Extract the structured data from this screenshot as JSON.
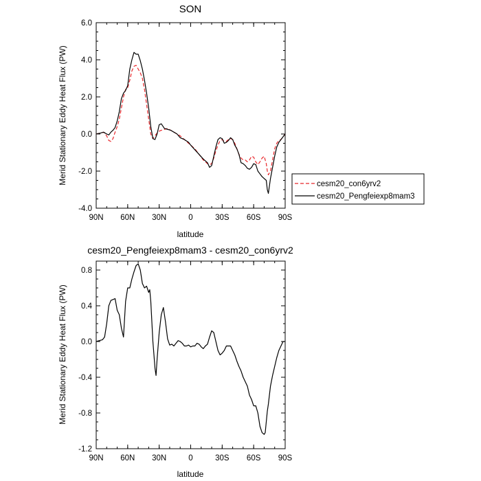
{
  "chart_data": [
    {
      "type": "line",
      "title": "SON",
      "xlabel": "latitude",
      "ylabel": "Merid Stationary Eddy Heat Flux (PW)",
      "xlim": [
        90,
        -90
      ],
      "ylim": [
        -4,
        6
      ],
      "x_ticks": [
        90,
        60,
        30,
        0,
        -30,
        -60,
        -90
      ],
      "x_tick_labels": [
        "90N",
        "60N",
        "30N",
        "0",
        "30S",
        "60S",
        "90S"
      ],
      "y_ticks": [
        -4,
        -2,
        0,
        2,
        4,
        6
      ],
      "y_tick_labels": [
        "-4.0",
        "-2.0",
        "0.0",
        "2.0",
        "4.0",
        "6.0"
      ],
      "grid": false,
      "legend_position": "right",
      "series": [
        {
          "name": "cesm20_con6yrv2",
          "color": "#e8262a",
          "dash": "dashed",
          "x": [
            90,
            86,
            83,
            80,
            78,
            76,
            74,
            72,
            70,
            68,
            66,
            64,
            62,
            60,
            58,
            56,
            54,
            52,
            50,
            48,
            46,
            44,
            42,
            40,
            38,
            36,
            34,
            32,
            30,
            28,
            25,
            22,
            19,
            16,
            13,
            10,
            6,
            2,
            0,
            -4,
            -8,
            -12,
            -16,
            -18,
            -20,
            -22,
            -24,
            -26,
            -28,
            -30,
            -32,
            -34,
            -36,
            -38,
            -40,
            -42,
            -44,
            -46,
            -48,
            -50,
            -52,
            -54,
            -56,
            -58,
            -60,
            -62,
            -64,
            -66,
            -68,
            -70,
            -72,
            -73,
            -74,
            -76,
            -78,
            -80,
            -82,
            -84,
            -86,
            -90
          ],
          "y": [
            0.0,
            0.05,
            0.1,
            -0.1,
            -0.35,
            -0.4,
            -0.25,
            0.1,
            0.4,
            0.8,
            1.4,
            2.0,
            2.4,
            2.5,
            2.9,
            3.4,
            3.65,
            3.7,
            3.5,
            3.3,
            3.0,
            2.4,
            1.6,
            0.8,
            0.0,
            -0.25,
            -0.1,
            0.05,
            0.15,
            0.2,
            0.25,
            0.3,
            0.2,
            0.1,
            0.0,
            -0.1,
            -0.3,
            -0.5,
            -0.6,
            -0.8,
            -1.1,
            -1.4,
            -1.6,
            -1.65,
            -1.6,
            -1.3,
            -0.9,
            -0.6,
            -0.35,
            -0.3,
            -0.4,
            -0.4,
            -0.3,
            -0.25,
            -0.3,
            -0.5,
            -0.8,
            -1.1,
            -1.3,
            -1.4,
            -1.4,
            -1.5,
            -1.4,
            -1.2,
            -1.25,
            -1.5,
            -1.65,
            -1.5,
            -1.3,
            -1.2,
            -1.6,
            -2.0,
            -2.2,
            -2.0,
            -1.4,
            -0.8,
            -0.5,
            -0.35,
            -0.3,
            0.0
          ]
        },
        {
          "name": "cesm20_Pengfeiexp8mam3",
          "color": "#000000",
          "dash": "solid",
          "x": [
            90,
            86,
            83,
            80,
            78,
            76,
            74,
            72,
            70,
            68,
            66,
            64,
            62,
            60,
            58,
            56,
            54,
            52,
            50,
            48,
            46,
            44,
            42,
            40,
            38,
            36,
            34,
            32,
            30,
            28,
            25,
            22,
            19,
            16,
            13,
            10,
            6,
            2,
            0,
            -4,
            -8,
            -12,
            -16,
            -18,
            -20,
            -22,
            -24,
            -26,
            -28,
            -30,
            -32,
            -34,
            -36,
            -38,
            -40,
            -42,
            -44,
            -46,
            -48,
            -50,
            -52,
            -54,
            -56,
            -58,
            -60,
            -62,
            -64,
            -66,
            -68,
            -70,
            -72,
            -73,
            -74,
            -76,
            -78,
            -80,
            -82,
            -84,
            -86,
            -90
          ],
          "y": [
            0.0,
            0.05,
            0.1,
            0.0,
            -0.05,
            0.1,
            0.2,
            0.35,
            0.7,
            1.2,
            1.9,
            2.2,
            2.35,
            2.6,
            3.5,
            4.0,
            4.4,
            4.3,
            4.3,
            3.95,
            3.5,
            2.9,
            2.2,
            1.4,
            0.4,
            -0.25,
            -0.3,
            0.0,
            0.5,
            0.55,
            0.3,
            0.25,
            0.2,
            0.1,
            0.0,
            -0.2,
            -0.3,
            -0.45,
            -0.6,
            -0.85,
            -1.1,
            -1.35,
            -1.55,
            -1.8,
            -1.7,
            -1.2,
            -0.7,
            -0.3,
            -0.2,
            -0.25,
            -0.5,
            -0.45,
            -0.35,
            -0.2,
            -0.3,
            -0.6,
            -0.8,
            -1.1,
            -1.55,
            -1.6,
            -1.7,
            -1.85,
            -1.9,
            -1.8,
            -1.6,
            -1.65,
            -2.0,
            -2.15,
            -2.3,
            -2.4,
            -2.5,
            -3.0,
            -3.2,
            -2.4,
            -1.8,
            -1.2,
            -0.7,
            -0.45,
            -0.3,
            0.0
          ]
        }
      ]
    },
    {
      "type": "line",
      "title": "cesm20_Pengfeiexp8mam3 - cesm20_con6yrv2",
      "xlabel": "latitude",
      "ylabel": "Merid Stationary Eddy Heat Flux (PW)",
      "xlim": [
        90,
        -90
      ],
      "ylim": [
        -1.2,
        0.9
      ],
      "x_ticks": [
        90,
        60,
        30,
        0,
        -30,
        -60,
        -90
      ],
      "x_tick_labels": [
        "90N",
        "60N",
        "30N",
        "0",
        "30S",
        "60S",
        "90S"
      ],
      "y_ticks": [
        -1.2,
        -0.8,
        -0.4,
        0.0,
        0.4,
        0.8
      ],
      "y_tick_labels": [
        "-1.2",
        "-0.8",
        "-0.4",
        "0.0",
        "0.4",
        "0.8"
      ],
      "grid": false,
      "series": [
        {
          "color": "#000000",
          "dash": "solid",
          "x": [
            90,
            87,
            84,
            82,
            80,
            78,
            76,
            74,
            72,
            70,
            68,
            66,
            64,
            62,
            60,
            58,
            56,
            54,
            52,
            50,
            48,
            46,
            44,
            42,
            40,
            39,
            38,
            36,
            34,
            33,
            32,
            30,
            28,
            26,
            24,
            22,
            20,
            18,
            16,
            14,
            12,
            10,
            8,
            6,
            4,
            2,
            0,
            -2,
            -4,
            -6,
            -8,
            -10,
            -12,
            -14,
            -16,
            -18,
            -20,
            -22,
            -24,
            -26,
            -28,
            -30,
            -32,
            -34,
            -36,
            -38,
            -40,
            -42,
            -44,
            -46,
            -48,
            -50,
            -52,
            -54,
            -56,
            -58,
            -60,
            -62,
            -64,
            -66,
            -68,
            -70,
            -71,
            -72,
            -73,
            -74,
            -75,
            -76,
            -78,
            -80,
            -82,
            -84,
            -86,
            -88,
            -90
          ],
          "y": [
            0.0,
            0.01,
            0.02,
            0.05,
            0.2,
            0.4,
            0.46,
            0.47,
            0.48,
            0.35,
            0.3,
            0.15,
            0.05,
            0.45,
            0.6,
            0.6,
            0.7,
            0.78,
            0.85,
            0.87,
            0.8,
            0.65,
            0.6,
            0.62,
            0.55,
            0.58,
            0.45,
            0.0,
            -0.3,
            -0.38,
            -0.2,
            0.1,
            0.3,
            0.38,
            0.22,
            0.03,
            -0.04,
            -0.03,
            -0.05,
            -0.02,
            0.01,
            0.0,
            -0.02,
            -0.05,
            -0.05,
            -0.04,
            -0.06,
            -0.05,
            -0.05,
            -0.02,
            -0.03,
            -0.06,
            -0.08,
            -0.05,
            -0.03,
            0.05,
            0.12,
            0.1,
            0.0,
            -0.1,
            -0.15,
            -0.13,
            -0.1,
            -0.05,
            -0.05,
            -0.05,
            -0.1,
            -0.15,
            -0.22,
            -0.28,
            -0.33,
            -0.4,
            -0.45,
            -0.5,
            -0.6,
            -0.65,
            -0.72,
            -0.72,
            -0.8,
            -0.95,
            -1.02,
            -1.04,
            -1.02,
            -0.9,
            -0.78,
            -0.7,
            -0.6,
            -0.5,
            -0.38,
            -0.28,
            -0.18,
            -0.1,
            -0.05,
            0.0,
            0.0
          ]
        }
      ]
    }
  ]
}
